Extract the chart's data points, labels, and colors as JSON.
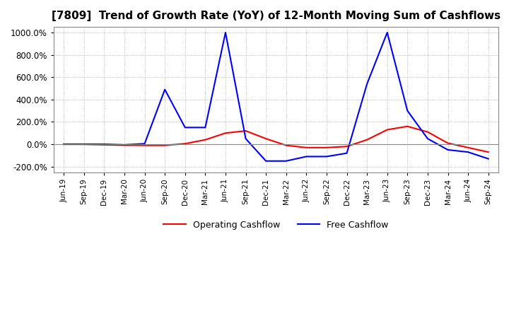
{
  "title": "[7809]  Trend of Growth Rate (YoY) of 12-Month Moving Sum of Cashflows",
  "title_fontsize": 11,
  "ylim": [
    -250,
    1050
  ],
  "yticks": [
    -200,
    0,
    200,
    400,
    600,
    800,
    1000
  ],
  "background_color": "#ffffff",
  "grid_color": "#aaaaaa",
  "legend_labels": [
    "Operating Cashflow",
    "Free Cashflow"
  ],
  "line_colors": [
    "#ff0000",
    "#0000ff"
  ],
  "x_labels": [
    "Jun-19",
    "Sep-19",
    "Dec-19",
    "Mar-20",
    "Jun-20",
    "Sep-20",
    "Dec-20",
    "Mar-21",
    "Jun-21",
    "Sep-21",
    "Dec-21",
    "Mar-22",
    "Jun-22",
    "Sep-22",
    "Dec-22",
    "Mar-23",
    "Jun-23",
    "Sep-23",
    "Dec-23",
    "Mar-24",
    "Jun-24",
    "Sep-24"
  ],
  "operating_cashflow": [
    0.0,
    0.0,
    -5.0,
    -8.0,
    -10.0,
    -10.0,
    5.0,
    40.0,
    100.0,
    120.0,
    50.0,
    -10.0,
    -30.0,
    -30.0,
    -20.0,
    40.0,
    130.0,
    160.0,
    110.0,
    10.0,
    -30.0,
    -70.0
  ],
  "free_cashflow": [
    0.0,
    0.0,
    0.0,
    -5.0,
    5.0,
    490.0,
    150.0,
    150.0,
    1000.0,
    50.0,
    -150.0,
    -150.0,
    -110.0,
    -110.0,
    -80.0,
    540.0,
    1000.0,
    300.0,
    50.0,
    -50.0,
    -70.0,
    -130.0
  ]
}
